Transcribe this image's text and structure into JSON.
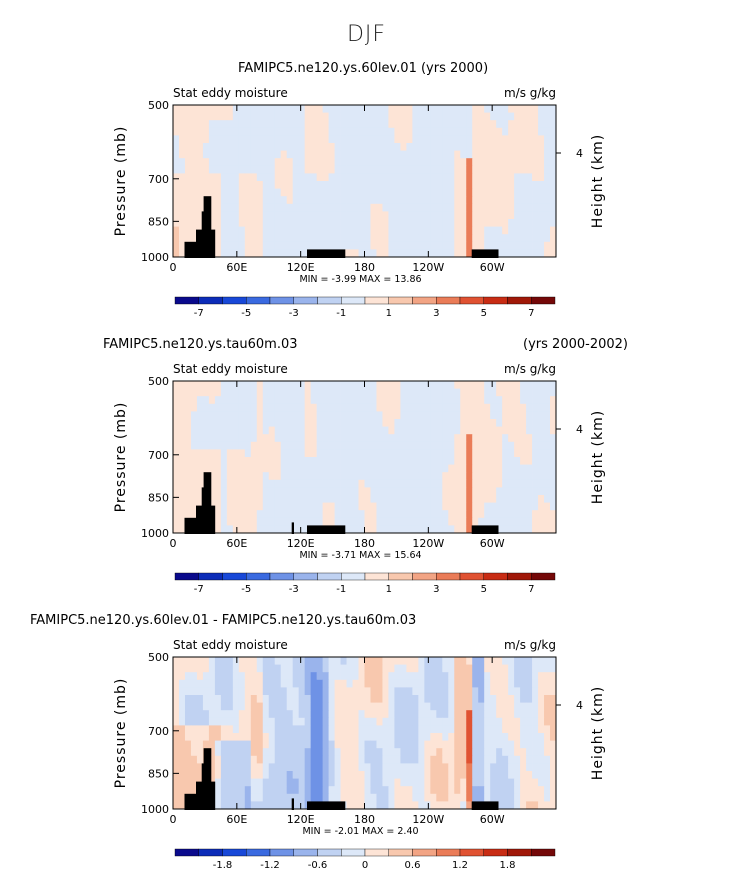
{
  "supertitle": "DJF",
  "colors": {
    "blue_scale": [
      "#0a0a8c",
      "#0c2cb8",
      "#1848d8",
      "#3a6ae0",
      "#6e92e6",
      "#9ab4ec",
      "#c0d2f2",
      "#dde8f8"
    ],
    "red_scale": [
      "#fde4d6",
      "#f8c8ae",
      "#f2a484",
      "#ea7c58",
      "#e05232",
      "#c82c14",
      "#a01808",
      "#740808"
    ],
    "mountain": "#000000"
  },
  "chart_data": [
    {
      "type": "heatmap",
      "title": "FAMIPC5.ne120.ys.60lev.01 (yrs 2000)",
      "title_right": "",
      "left_string": "Stat eddy moisture",
      "units": "m/s g/kg",
      "ylabel": "Pressure (mb)",
      "ylabel_right": "Height (km)",
      "y_ticks": [
        "500",
        "700",
        "850",
        "1000"
      ],
      "y_right_ticks": [
        "4"
      ],
      "x_ticks": [
        "0",
        "60E",
        "120E",
        "180",
        "120W",
        "60W"
      ],
      "min_max": "MIN =   -3.99   MAX =   13.86",
      "levels": [
        "-7",
        "-5",
        "-3",
        "-1",
        "1",
        "3",
        "5",
        "7"
      ],
      "scale": 1
    },
    {
      "type": "heatmap",
      "title": "FAMIPC5.ne120.ys.tau60m.03",
      "title_right": "(yrs 2000-2002)",
      "left_string": "Stat eddy moisture",
      "units": "m/s g/kg",
      "ylabel": "Pressure (mb)",
      "ylabel_right": "Height (km)",
      "y_ticks": [
        "500",
        "700",
        "850",
        "1000"
      ],
      "y_right_ticks": [
        "4"
      ],
      "x_ticks": [
        "0",
        "60E",
        "120E",
        "180",
        "120W",
        "60W"
      ],
      "min_max": "MIN =   -3.71   MAX =   15.64",
      "levels": [
        "-7",
        "-5",
        "-3",
        "-1",
        "1",
        "3",
        "5",
        "7"
      ],
      "scale": 1
    },
    {
      "type": "heatmap",
      "title": "FAMIPC5.ne120.ys.60lev.01 - FAMIPC5.ne120.ys.tau60m.03",
      "title_right": "",
      "left_string": "Stat eddy moisture",
      "units": "m/s g/kg",
      "ylabel": "Pressure (mb)",
      "ylabel_right": "Height (km)",
      "y_ticks": [
        "500",
        "700",
        "850",
        "1000"
      ],
      "y_right_ticks": [
        "4"
      ],
      "x_ticks": [
        "0",
        "60E",
        "120E",
        "180",
        "120W",
        "60W"
      ],
      "min_max": "MIN =   -2.01   MAX =   2.40",
      "levels": [
        "-1.8",
        "-1.2",
        "-0.6",
        "0",
        "0.6",
        "1.2",
        "1.8"
      ],
      "scale": 0.3
    }
  ]
}
